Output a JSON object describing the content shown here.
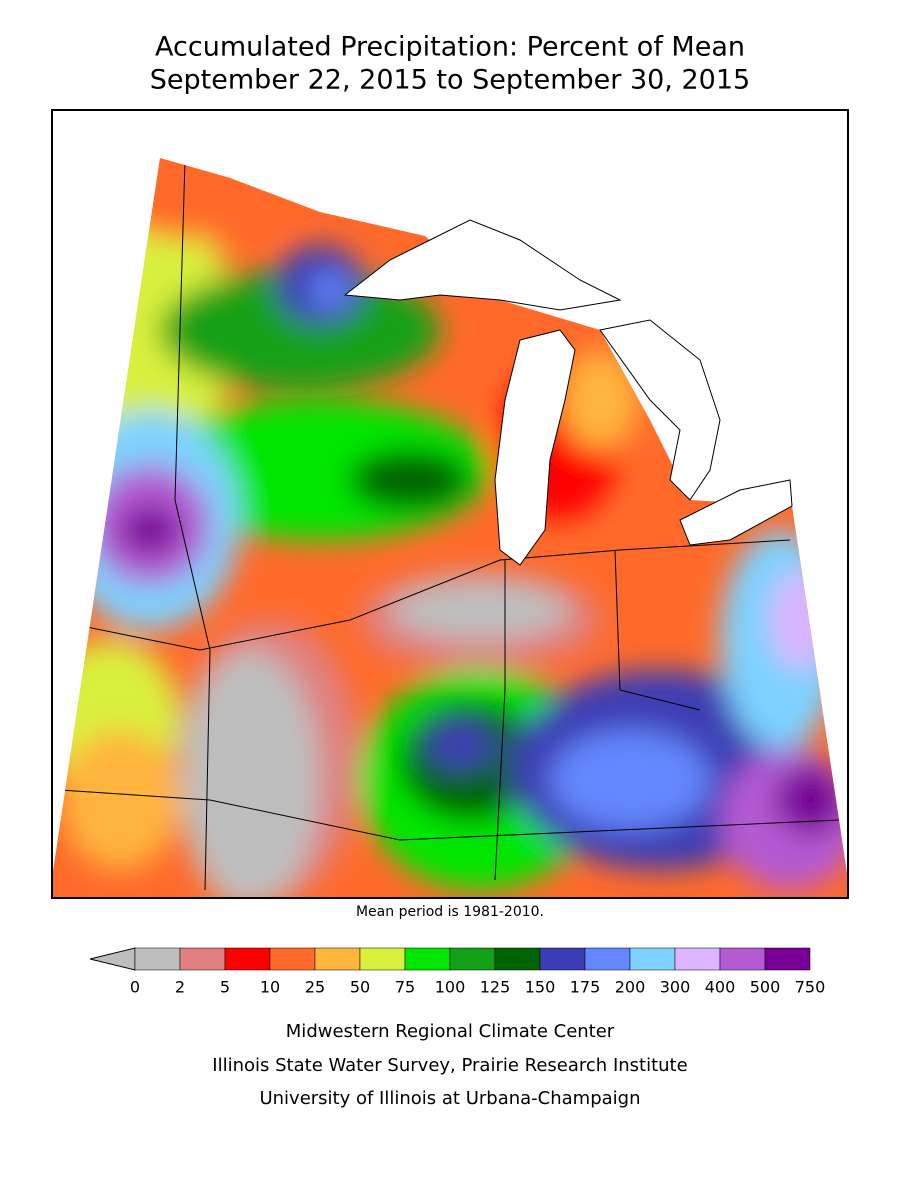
{
  "header": {
    "title_line1": "Accumulated Precipitation: Percent of Mean",
    "title_line2": "September 22, 2015 to September 30, 2015"
  },
  "map": {
    "note": "Mean period is 1981-2010."
  },
  "legend": {
    "ticks": [
      0,
      2,
      5,
      10,
      25,
      50,
      75,
      100,
      125,
      150,
      175,
      200,
      300,
      400,
      500,
      750
    ],
    "colors": [
      "#bebebe",
      "#e08080",
      "#ff0000",
      "#ff6a2a",
      "#ffb43c",
      "#d9f03c",
      "#00e600",
      "#14a014",
      "#006400",
      "#3c3cb4",
      "#6487ff",
      "#7dd2ff",
      "#dcb4ff",
      "#b45ad2",
      "#780096"
    ]
  },
  "credits": [
    "Midwestern Regional Climate Center",
    "Illinois State Water Survey, Prairie Research Institute",
    "University of Illinois at Urbana-Champaign"
  ]
}
